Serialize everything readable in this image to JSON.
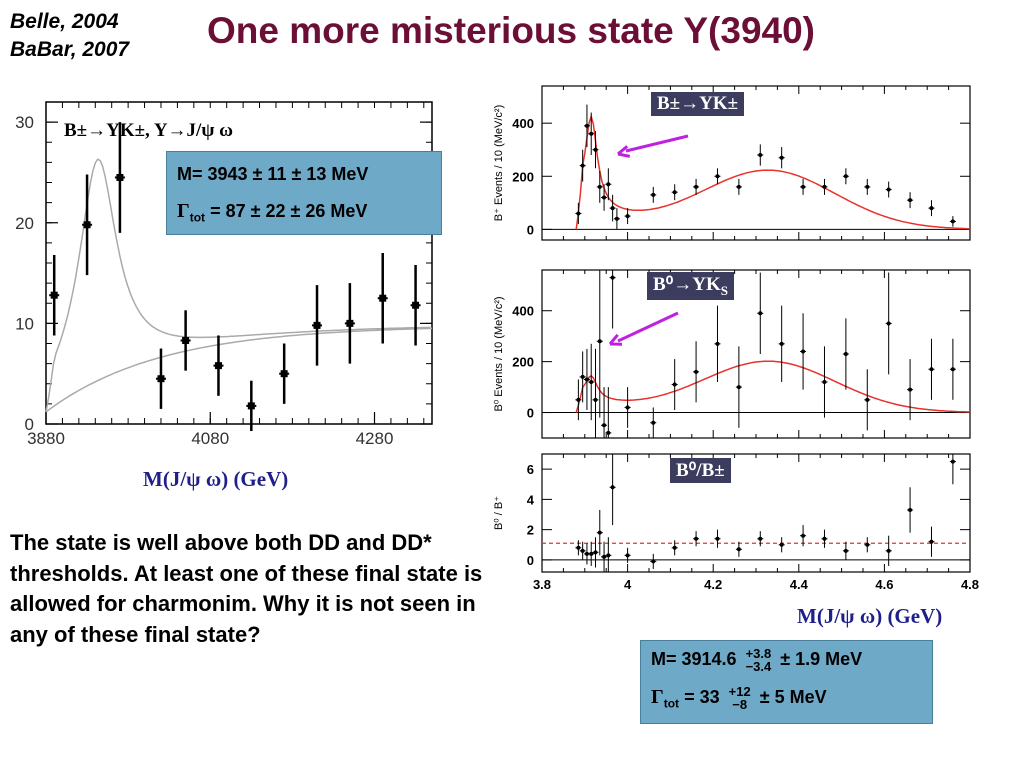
{
  "header": {
    "ref_line1": "Belle, 2004",
    "ref_line2": "BaBar, 2007",
    "title": "One more misterious state Y(3940)"
  },
  "left_plot": {
    "legend": "B±→YK±, Y→J/ψ ω",
    "xlabel": "M(J/ψ ω) (GeV)",
    "box": {
      "line1": "M= 3943 ± 11 ± 13 MeV",
      "line2_prefix": "Γ",
      "line2_sub": "tot",
      "line2_rest": " = 87 ± 22 ± 26 MeV"
    }
  },
  "right_plot": {
    "panel1_label": "B±→YK±",
    "panel2_label_main": "B⁰→YK",
    "panel2_label_sub": "S",
    "panel3_label": "B⁰/B±",
    "xlabel": "M(J/ψ ω) (GeV)",
    "box": {
      "m_prefix": "M= 3914.6",
      "m_up": "+3.8",
      "m_down": "−3.4",
      "m_rest": "± 1.9 MeV",
      "g_prefix": "Γ",
      "g_sub": "tot",
      "g_mid": " = 33",
      "g_up": "+12",
      "g_down": "−8",
      "g_rest": "± 5 MeV"
    }
  },
  "body_text": "The state is well above both DD and DD* thresholds. At least one of these final state is allowed for charmonim. Why it is not seen in any of these final state?",
  "colors": {
    "title": "#6b0f36",
    "box": "#6fa9c8",
    "label_bg": "#3c3c5e",
    "fit": "#e8322b",
    "arrow": "#c020e0"
  },
  "chart_data": [
    {
      "type": "scatter",
      "title": "",
      "xlabel": "M(J/ψ ω) (GeV)",
      "ylabel": "",
      "xlim": [
        3880,
        4350
      ],
      "ylim": [
        0,
        32
      ],
      "xticks": [
        "3880",
        "4080",
        "4280"
      ],
      "yticks": [
        "0",
        "10",
        "20",
        "30"
      ],
      "series": [
        {
          "x": [
            3890,
            3930,
            3970,
            4020,
            4050,
            4090,
            4130,
            4170,
            4210,
            4250,
            4290,
            4330
          ],
          "y": [
            12.8,
            19.8,
            24.5,
            4.5,
            8.3,
            5.8,
            1.8,
            5.0,
            9.8,
            10.0,
            12.5,
            11.8
          ],
          "err": [
            4.0,
            5.0,
            5.5,
            3.0,
            3.0,
            3.0,
            2.5,
            3.0,
            4.0,
            4.0,
            4.5,
            4.0
          ]
        }
      ]
    },
    {
      "type": "scatter",
      "ylabel": "B⁺ Events / 10 (MeV/c²)",
      "xlim": [
        3.8,
        4.8
      ],
      "ylim": [
        -40,
        540
      ],
      "yticks": [
        "0",
        "200",
        "400"
      ],
      "series": [
        {
          "x": [
            3.885,
            3.895,
            3.905,
            3.915,
            3.925,
            3.935,
            3.945,
            3.955,
            3.965,
            3.975,
            4.0,
            4.06,
            4.11,
            4.16,
            4.21,
            4.26,
            4.31,
            4.36,
            4.41,
            4.46,
            4.51,
            4.56,
            4.61,
            4.66,
            4.71,
            4.76
          ],
          "y": [
            60,
            240,
            390,
            360,
            300,
            160,
            120,
            170,
            80,
            40,
            50,
            130,
            140,
            160,
            200,
            160,
            280,
            270,
            160,
            160,
            200,
            160,
            150,
            110,
            80,
            30
          ],
          "err": [
            40,
            60,
            80,
            80,
            70,
            60,
            50,
            60,
            50,
            40,
            30,
            30,
            30,
            30,
            30,
            30,
            40,
            40,
            30,
            30,
            30,
            30,
            30,
            30,
            30,
            20
          ]
        }
      ]
    },
    {
      "type": "scatter",
      "ylabel": "B⁰ Events / 10 (MeV/c²)",
      "xlim": [
        3.8,
        4.8
      ],
      "ylim": [
        -100,
        560
      ],
      "yticks": [
        "0",
        "200",
        "400"
      ],
      "series": [
        {
          "x": [
            3.885,
            3.895,
            3.905,
            3.915,
            3.925,
            3.935,
            3.945,
            3.955,
            3.965,
            4.0,
            4.06,
            4.11,
            4.16,
            4.21,
            4.26,
            4.31,
            4.36,
            4.41,
            4.46,
            4.51,
            4.56,
            4.61,
            4.66,
            4.71,
            4.76
          ],
          "y": [
            50,
            140,
            130,
            120,
            50,
            280,
            -50,
            -80,
            530,
            20,
            -40,
            110,
            160,
            270,
            100,
            390,
            270,
            240,
            120,
            230,
            50,
            350,
            90,
            170,
            170
          ],
          "err": [
            80,
            100,
            120,
            150,
            200,
            300,
            150,
            180,
            200,
            80,
            60,
            100,
            120,
            150,
            160,
            160,
            150,
            150,
            140,
            140,
            120,
            200,
            120,
            120,
            120
          ]
        }
      ]
    },
    {
      "type": "scatter",
      "ylabel": "B⁰ / B⁺",
      "xlim": [
        3.8,
        4.8
      ],
      "ylim": [
        -0.8,
        7
      ],
      "yticks": [
        "0",
        "2",
        "4",
        "6"
      ],
      "series": [
        {
          "x": [
            3.885,
            3.895,
            3.905,
            3.915,
            3.925,
            3.935,
            3.945,
            3.955,
            3.965,
            4.0,
            4.06,
            4.11,
            4.16,
            4.21,
            4.26,
            4.31,
            4.36,
            4.41,
            4.46,
            4.51,
            4.56,
            4.61,
            4.66,
            4.71,
            4.76
          ],
          "y": [
            0.8,
            0.6,
            0.4,
            0.4,
            0.5,
            1.8,
            0.2,
            0.3,
            4.8,
            0.3,
            -0.1,
            0.8,
            1.4,
            1.4,
            0.7,
            1.4,
            1.0,
            1.6,
            1.4,
            0.6,
            1.0,
            0.6,
            3.3,
            1.2,
            6.5
          ],
          "err": [
            0.5,
            0.6,
            0.7,
            0.8,
            1.0,
            1.5,
            1.0,
            1.2,
            2.5,
            0.5,
            0.5,
            0.5,
            0.5,
            0.6,
            0.5,
            0.5,
            0.5,
            0.7,
            0.6,
            0.6,
            0.5,
            1.0,
            1.5,
            1.0,
            1.5
          ]
        }
      ],
      "reference_line": 1.1,
      "xticks": [
        "3.8",
        "4",
        "4.2",
        "4.4",
        "4.6",
        "4.8"
      ]
    }
  ]
}
